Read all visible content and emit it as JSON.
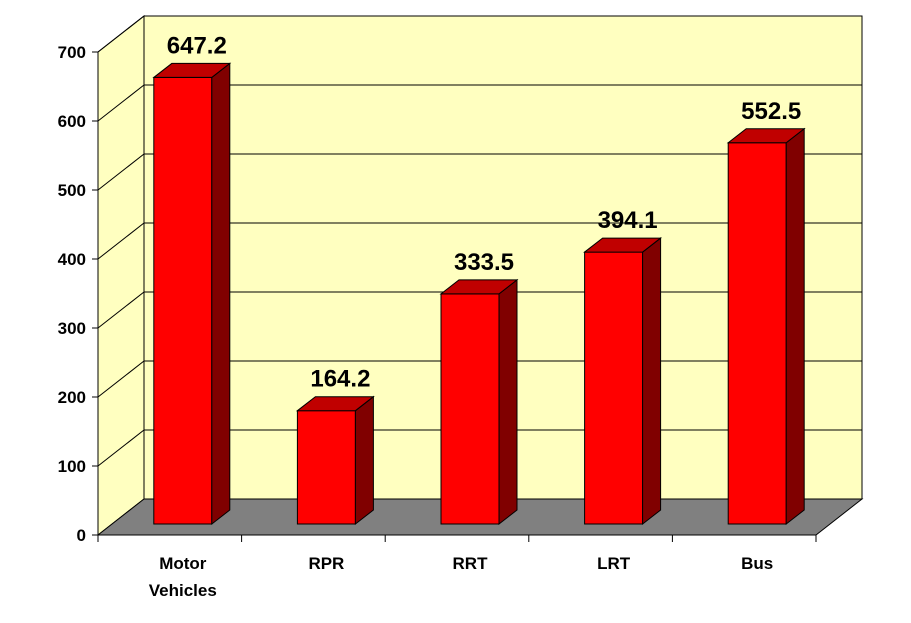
{
  "chart_data": {
    "type": "bar",
    "style": "3d-column",
    "categories": [
      [
        "Motor",
        "Vehicles"
      ],
      [
        "RPR"
      ],
      [
        "RRT"
      ],
      [
        "LRT"
      ],
      [
        "Bus"
      ]
    ],
    "values": [
      647.2,
      164.2,
      333.5,
      394.1,
      552.5
    ],
    "data_labels": [
      "647.2",
      "164.2",
      "333.5",
      "394.1",
      "552.5"
    ],
    "y_ticks": [
      "0",
      "100",
      "200",
      "300",
      "400",
      "500",
      "600",
      "700"
    ],
    "ylim": [
      0,
      700
    ],
    "grid": true,
    "legend": "none",
    "colors": {
      "bar_front": "#ff0000",
      "bar_side": "#800000",
      "bar_top": "#c00000",
      "wall": "#ffffc0",
      "floor": "#808080"
    }
  }
}
